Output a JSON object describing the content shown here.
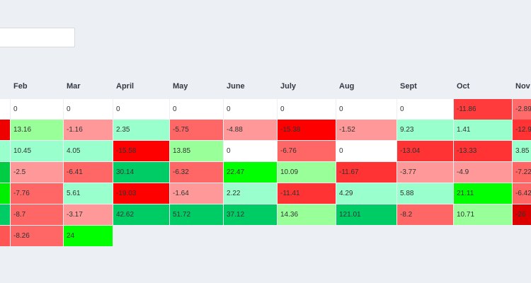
{
  "filter": {
    "value": ""
  },
  "columns": [
    "",
    "Feb",
    "Mar",
    "April",
    "May",
    "June",
    "July",
    "Aug",
    "Sept",
    "Oct",
    "Nov"
  ],
  "rows": [
    [
      "",
      "0",
      "0",
      "0",
      "0",
      "0",
      "0",
      "0",
      "0",
      "-11.86",
      "-2.89"
    ],
    [
      "",
      "13.16",
      "-1.16",
      "2.35",
      "-5.75",
      "-4.88",
      "-15.38",
      "-1.52",
      "9.23",
      "1.41",
      "-12.9"
    ],
    [
      "",
      "10.45",
      "4.05",
      "-15.58",
      "13.85",
      "0",
      "-6.76",
      "0",
      "-13.04",
      "-13.33",
      "3.85"
    ],
    [
      "",
      "-2.5",
      "-6.41",
      "30.14",
      "-6.32",
      "22.47",
      "10.09",
      "-11.67",
      "-3.77",
      "-4.9",
      "-7.22"
    ],
    [
      "",
      "-7.76",
      "5.61",
      "-19.03",
      "-1.64",
      "2.22",
      "-11.41",
      "4.29",
      "5.88",
      "21.11",
      "-6.42"
    ],
    [
      "",
      "-8.7",
      "-3.17",
      "42.62",
      "51.72",
      "37.12",
      "14.36",
      "121.01",
      "-8.2",
      "10.71",
      "-26"
    ],
    [
      "",
      "-8.26",
      "24"
    ]
  ],
  "colors": {
    "r0": [
      "#ffffff",
      "#ffffff",
      "#ffffff",
      "#ffffff",
      "#ffffff",
      "#ffffff",
      "#ffffff",
      "#ffffff",
      "#ffffff",
      "#ff3b3b",
      "#ff6b6b"
    ],
    "r1": [
      "#ee0000",
      "#99ff99",
      "#ff9999",
      "#99ffcc",
      "#ff6666",
      "#ff9999",
      "#ff0000",
      "#ff9999",
      "#99ffcc",
      "#99ffcc",
      "#ff3333"
    ],
    "r2": [
      "#99ffcc",
      "#99ffcc",
      "#99ffcc",
      "#ff0000",
      "#99ff99",
      "#ffffff",
      "#ff6666",
      "#ffffff",
      "#ff3333",
      "#ff3333",
      "#99ffcc"
    ],
    "r3": [
      "#00cc44",
      "#ff9999",
      "#ff6666",
      "#00cc66",
      "#ff6666",
      "#00ff00",
      "#99ff99",
      "#ff3333",
      "#ff9999",
      "#ff9999",
      "#ff6666"
    ],
    "r4": [
      "#00ee00",
      "#ff6666",
      "#99ffcc",
      "#ff0000",
      "#ff9999",
      "#99ffcc",
      "#ff3333",
      "#99ffcc",
      "#99ffcc",
      "#00ff00",
      "#ff6666"
    ],
    "r5": [
      "#00cc66",
      "#ff6666",
      "#ff9999",
      "#00cc66",
      "#00cc66",
      "#00cc66",
      "#99ff99",
      "#00cc66",
      "#ff6666",
      "#99ff99",
      "#dd0000"
    ],
    "r6": [
      "#ff5555",
      "#ff6666",
      "#00ff00"
    ]
  }
}
